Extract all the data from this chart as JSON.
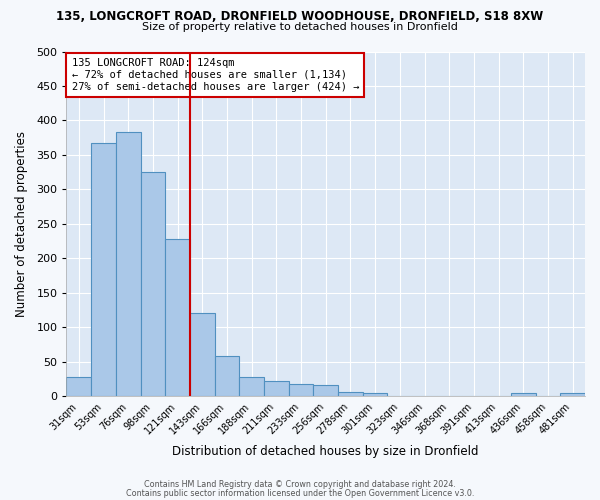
{
  "title_line1": "135, LONGCROFT ROAD, DRONFIELD WOODHOUSE, DRONFIELD, S18 8XW",
  "title_line2": "Size of property relative to detached houses in Dronfield",
  "xlabel": "Distribution of detached houses by size in Dronfield",
  "ylabel": "Number of detached properties",
  "categories": [
    "31sqm",
    "53sqm",
    "76sqm",
    "98sqm",
    "121sqm",
    "143sqm",
    "166sqm",
    "188sqm",
    "211sqm",
    "233sqm",
    "256sqm",
    "278sqm",
    "301sqm",
    "323sqm",
    "346sqm",
    "368sqm",
    "391sqm",
    "413sqm",
    "436sqm",
    "458sqm",
    "481sqm"
  ],
  "values": [
    28,
    368,
    383,
    325,
    228,
    121,
    58,
    28,
    23,
    18,
    16,
    6,
    5,
    0,
    0,
    0,
    0,
    0,
    5,
    0,
    5
  ],
  "bar_color": "#aac8e8",
  "bar_edge_color": "#5090c0",
  "bar_linewidth": 0.8,
  "vline_color": "#cc0000",
  "annotation_text": "135 LONGCROFT ROAD: 124sqm\n← 72% of detached houses are smaller (1,134)\n27% of semi-detached houses are larger (424) →",
  "annotation_box_color": "#ffffff",
  "annotation_box_edge": "#cc0000",
  "ylim": [
    0,
    500
  ],
  "yticks": [
    0,
    50,
    100,
    150,
    200,
    250,
    300,
    350,
    400,
    450,
    500
  ],
  "background_color": "#dde8f5",
  "fig_background": "#f5f8fc",
  "grid_color": "#ffffff",
  "footnote_line1": "Contains HM Land Registry data © Crown copyright and database right 2024.",
  "footnote_line2": "Contains public sector information licensed under the Open Government Licence v3.0."
}
